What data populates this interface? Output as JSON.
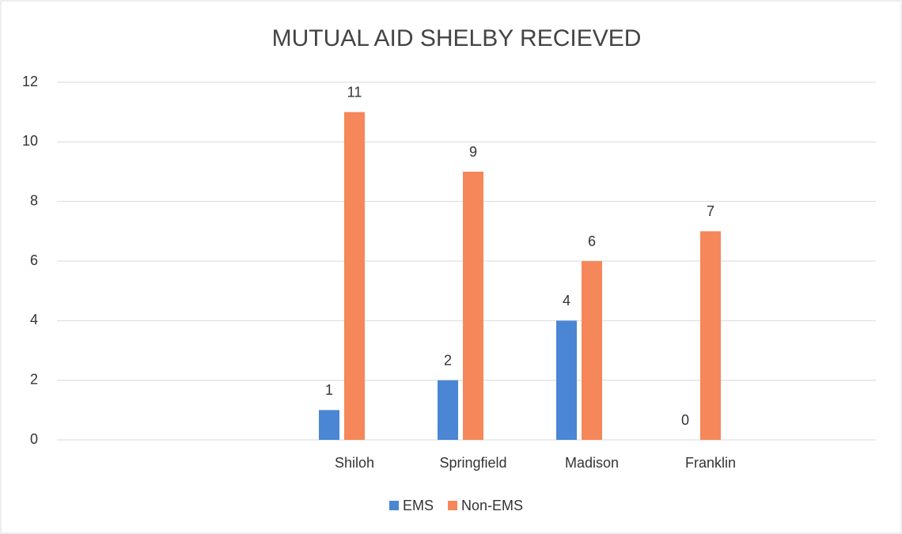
{
  "chart_data": {
    "type": "bar",
    "title": "MUTUAL AID SHELBY RECIEVED",
    "categories": [
      null,
      null,
      "Shiloh",
      "Springfield",
      "Madison",
      "Franklin",
      null
    ],
    "series": [
      {
        "name": "EMS",
        "color": "#4a86d4",
        "values": [
          null,
          null,
          1,
          2,
          4,
          0,
          null
        ]
      },
      {
        "name": "Non-EMS",
        "color": "#f5875a",
        "values": [
          null,
          null,
          11,
          9,
          6,
          7,
          null
        ]
      }
    ],
    "ylim": [
      0,
      12
    ],
    "yticks": [
      0,
      2,
      4,
      6,
      8,
      10,
      12
    ],
    "grid": true,
    "legend": "bottom"
  }
}
